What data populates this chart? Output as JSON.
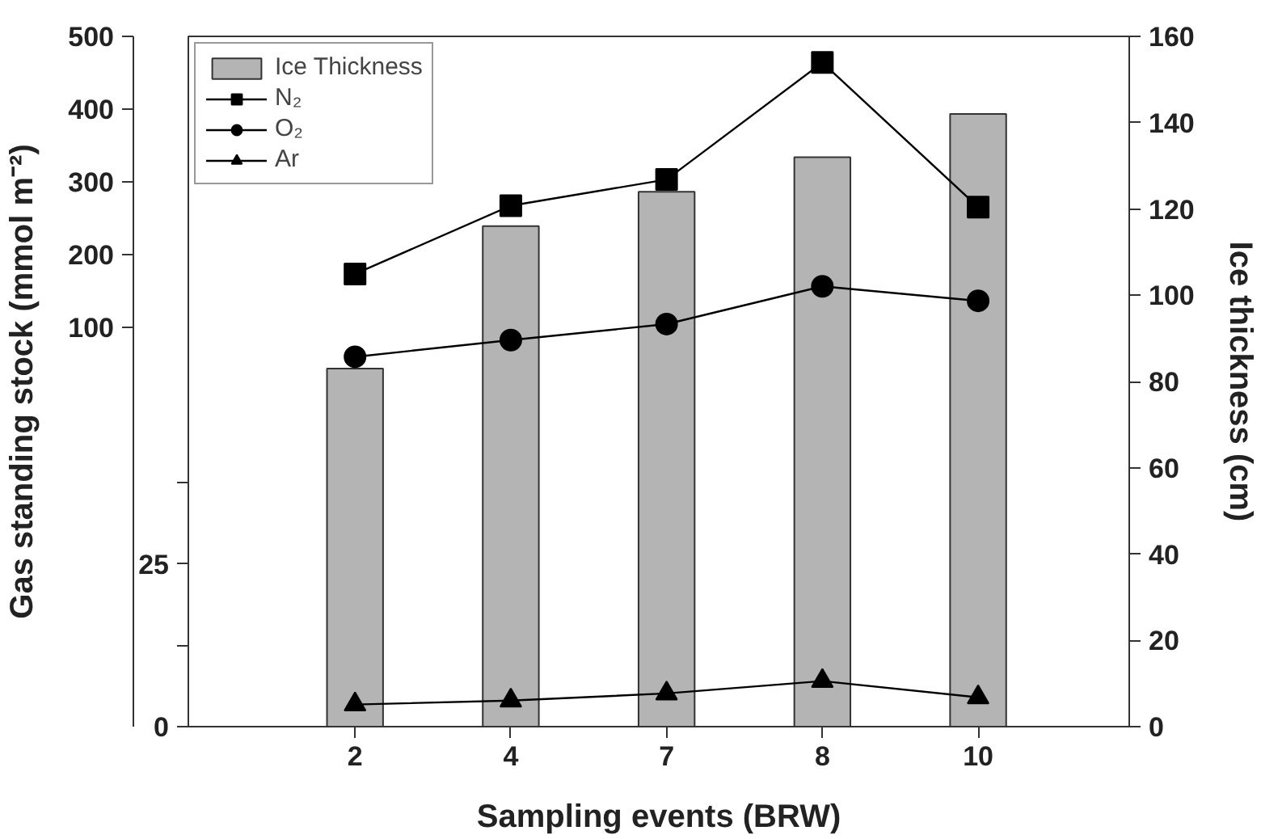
{
  "chart_data": {
    "type": "line",
    "categories": [
      "2",
      "4",
      "7",
      "8",
      "10"
    ],
    "xlabel": "Sampling events (BRW)",
    "ylabel": "Gas standing stock (mmol m⁻²)",
    "y2label": "Ice thickness (cm)",
    "ylim": [
      0,
      106
    ],
    "yticks": [
      0,
      {
        "value": 12.5,
        "label": null
      },
      25,
      {
        "value": 37.5,
        "label": null
      }
    ],
    "y3lim": [
      -450,
      500
    ],
    "y3ticks": [
      100,
      200,
      300,
      400,
      500
    ],
    "y2lim": [
      0,
      160
    ],
    "y2ticks": [
      0,
      20,
      40,
      60,
      80,
      100,
      120,
      140,
      160
    ],
    "legend": "top left",
    "series": [
      {
        "name": "Ice Thickness",
        "type": "bar",
        "axis": "y2",
        "color": "#b4b4b4",
        "values": [
          83,
          116,
          124,
          132,
          142
        ]
      },
      {
        "name": "N₂",
        "axis": "y3",
        "marker": "square",
        "color": "#000000",
        "values": [
          173,
          267,
          303,
          464,
          265
        ]
      },
      {
        "name": "O₂",
        "axis": "y3",
        "marker": "circle",
        "color": "#000000",
        "values": [
          59,
          82,
          104,
          156,
          136
        ]
      },
      {
        "name": "Ar",
        "marker": "triangle",
        "color": "#000000",
        "values": [
          3.4,
          4.0,
          5.1,
          7.0,
          4.5
        ]
      }
    ]
  }
}
